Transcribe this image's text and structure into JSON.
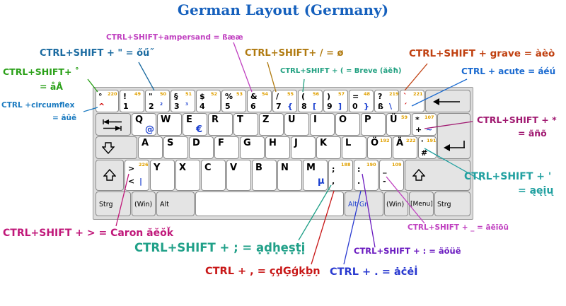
{
  "title": "German Layout (Germany)",
  "keys": {
    "circ": {
      "tl": "°",
      "bl": "^",
      "num": "220"
    },
    "k1": {
      "tl": "!",
      "bl": "1",
      "num": "49"
    },
    "k2": {
      "tl": "\"",
      "bl": "2",
      "br": "²",
      "num": "50"
    },
    "k3": {
      "tl": "§",
      "bl": "3",
      "br": "³",
      "num": "51"
    },
    "k4": {
      "tl": "$",
      "bl": "4",
      "num": "52"
    },
    "k5": {
      "tl": "%",
      "bl": "5",
      "num": "53"
    },
    "k6": {
      "tl": "&",
      "bl": "6",
      "num": "54"
    },
    "k7": {
      "tl": "/",
      "bl": "7",
      "br": "{",
      "num": "55"
    },
    "k8": {
      "tl": "(",
      "bl": "8",
      "br": "[",
      "num": "56"
    },
    "k9": {
      "tl": ")",
      "bl": "9",
      "br": "]",
      "num": "57"
    },
    "k0": {
      "tl": "=",
      "bl": "0",
      "br": "}",
      "num": "48"
    },
    "ss": {
      "tl": "?",
      "bl": "ß",
      "br": "\\",
      "num": "219"
    },
    "acute": {
      "tl": "`",
      "bl": "´",
      "num": "221"
    },
    "q": {
      "tl": "Q",
      "br": "@"
    },
    "w": {
      "tl": "W"
    },
    "e": {
      "tl": "E",
      "br": "€"
    },
    "r": {
      "tl": "R"
    },
    "t": {
      "tl": "T"
    },
    "z": {
      "tl": "Z"
    },
    "u": {
      "tl": "U"
    },
    "i": {
      "tl": "I"
    },
    "o": {
      "tl": "O"
    },
    "p": {
      "tl": "P"
    },
    "ue": {
      "tl": "Ü",
      "num": "59"
    },
    "plus": {
      "tl": "*",
      "bl": "+",
      "br": "~",
      "num": "107"
    },
    "a": {
      "tl": "A"
    },
    "s": {
      "tl": "S"
    },
    "d": {
      "tl": "D"
    },
    "f": {
      "tl": "F"
    },
    "g": {
      "tl": "G"
    },
    "h": {
      "tl": "H"
    },
    "j": {
      "tl": "J"
    },
    "k": {
      "tl": "K"
    },
    "l": {
      "tl": "L"
    },
    "oe": {
      "tl": "Ö",
      "num": "192"
    },
    "ae": {
      "tl": "Ä",
      "num": "222"
    },
    "hash": {
      "tl": "'",
      "bl": "#",
      "num": "191"
    },
    "lt": {
      "tl": ">",
      "bl": "<",
      "br": "|",
      "num": "226"
    },
    "y": {
      "tl": "Y"
    },
    "x": {
      "tl": "X"
    },
    "c": {
      "tl": "C"
    },
    "v": {
      "tl": "V"
    },
    "b": {
      "tl": "B"
    },
    "n": {
      "tl": "N"
    },
    "m": {
      "tl": "M",
      "br": "µ"
    },
    "comma": {
      "tl": ";",
      "bl": ",",
      "num": "188"
    },
    "period": {
      "tl": ":",
      "bl": ".",
      "num": "190"
    },
    "minus": {
      "tl": "_",
      "bl": "-",
      "num": "109"
    },
    "strg_l": "Strg",
    "win_l": "(Win)",
    "alt": "Alt",
    "altgr": "Alt Gr",
    "win_r": "(Win)",
    "menu": "[Menu]",
    "strg_r": "Strg"
  },
  "annotations": [
    {
      "id": "ampersand",
      "text": "CTRL+SHIFT+ampersand = ßææ",
      "color": "#c040c0"
    },
    {
      "id": "quote",
      "text": "CTRL+SHIFT + \" = őű˝",
      "color": "#1a6aa0"
    },
    {
      "id": "slash",
      "text": "CTRL+SHIFT+ / = ø",
      "color": "#b07a10"
    },
    {
      "id": "grave",
      "text": "CTRL+SHIFT + grave = àèò",
      "color": "#c04010"
    },
    {
      "id": "degree",
      "text": "CTRL+SHIFT+ ˚",
      "color": "#2aa018"
    },
    {
      "id": "degree2",
      "text": "= åÅ",
      "color": "#2aa018"
    },
    {
      "id": "breve",
      "text": "CTRL+SHIFT + ( = Breve (ăĕħ)",
      "color": "#20a080"
    },
    {
      "id": "acute",
      "text": "CTRL + acute = áéú",
      "color": "#1a6ad0"
    },
    {
      "id": "circ",
      "text": "CTRL +circumflex",
      "color": "#1a7ac0"
    },
    {
      "id": "circ2",
      "text": "= âûê",
      "color": "#1a7ac0"
    },
    {
      "id": "tilde",
      "text": "CTRL+SHIFT + *",
      "color": "#a01870"
    },
    {
      "id": "tilde2",
      "text": "= ãñõ",
      "color": "#a01870"
    },
    {
      "id": "apos",
      "text": "CTRL+SHIFT + '",
      "color": "#20a0a0"
    },
    {
      "id": "apos2",
      "text": "= ąęįų",
      "color": "#20a0a0"
    },
    {
      "id": "caron",
      "text": "CTRL+SHIFT + > = Caron ăĕŏǩ",
      "color": "#c0187a"
    },
    {
      "id": "macron",
      "text": "CTRL+SHIFT + _ = āēīōū",
      "color": "#c040c0"
    },
    {
      "id": "semicolon",
      "text": "CTRL+SHIFT + ; = ạḍḥẹṣṭị",
      "color": "#20a088"
    },
    {
      "id": "colon",
      "text": "CTRL+SHIFT + : = äöüë",
      "color": "#6a1ac0"
    },
    {
      "id": "comma",
      "text": "CTRL + , = çḑĢģķḇņ",
      "color": "#c81818"
    },
    {
      "id": "dot",
      "text": "CTRL + . = ȧċėİ",
      "color": "#2a3ad0"
    }
  ]
}
